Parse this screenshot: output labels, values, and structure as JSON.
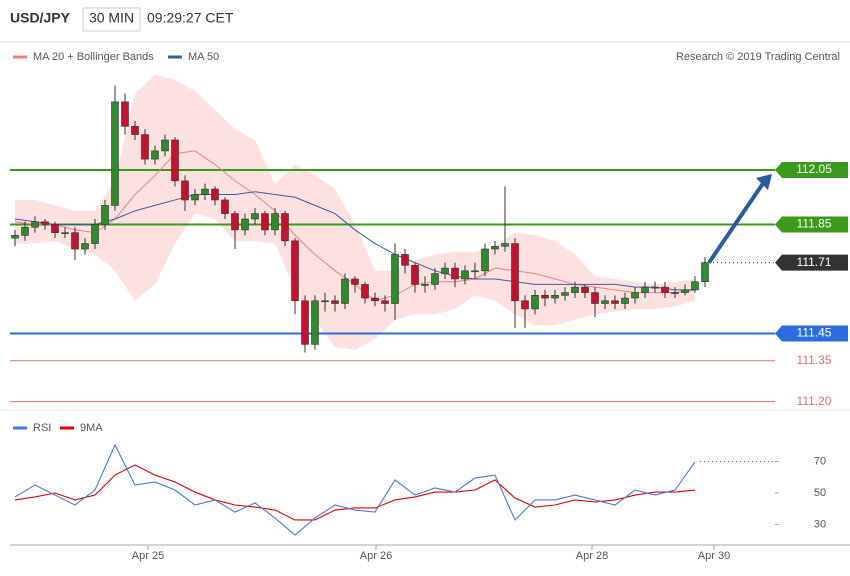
{
  "chart_data": [
    {
      "type": "candlestick",
      "title": "USD/JPY",
      "interval": "30 MIN",
      "time": "09:29:27 CET",
      "credit": "Research © 2019 Trading Central",
      "x": [
        0,
        1,
        2,
        3,
        4,
        5,
        6,
        7,
        8,
        9,
        10,
        11,
        12,
        13,
        14,
        15,
        16,
        17,
        18,
        19,
        20,
        21,
        22,
        23,
        24,
        25,
        26,
        27,
        28,
        29,
        30,
        31,
        32,
        33,
        34,
        35,
        36,
        37,
        38,
        39,
        40,
        41,
        42,
        43,
        44,
        45,
        46,
        47,
        48,
        49,
        50,
        51,
        52,
        53,
        54,
        55,
        56,
        57,
        58,
        59,
        60,
        61,
        62,
        63,
        64,
        65,
        66,
        67,
        68,
        69
      ],
      "open": [
        111.8,
        111.81,
        111.84,
        111.86,
        111.85,
        111.82,
        111.82,
        111.76,
        111.78,
        111.85,
        111.92,
        112.3,
        112.21,
        112.18,
        112.09,
        112.12,
        112.16,
        112.01,
        111.94,
        111.96,
        111.98,
        111.94,
        111.89,
        111.83,
        111.87,
        111.89,
        111.83,
        111.89,
        111.79,
        111.57,
        111.41,
        111.57,
        111.57,
        111.56,
        111.65,
        111.63,
        111.58,
        111.57,
        111.56,
        111.74,
        111.7,
        111.63,
        111.63,
        111.67,
        111.69,
        111.65,
        111.68,
        111.68,
        111.76,
        111.77,
        111.78,
        111.57,
        111.54,
        111.59,
        111.58,
        111.59,
        111.6,
        111.62,
        111.6,
        111.56,
        111.57,
        111.56,
        111.58,
        111.6,
        111.62,
        111.62,
        111.6,
        111.6,
        111.61,
        111.64
      ],
      "high": [
        111.83,
        111.86,
        111.88,
        111.87,
        111.86,
        111.84,
        111.84,
        111.8,
        111.87,
        111.94,
        112.36,
        112.33,
        112.23,
        112.2,
        112.14,
        112.18,
        112.17,
        112.03,
        111.98,
        112.0,
        111.99,
        111.95,
        111.9,
        111.89,
        111.91,
        111.9,
        111.91,
        111.9,
        111.8,
        111.59,
        111.59,
        111.6,
        111.59,
        111.67,
        111.66,
        111.64,
        111.6,
        111.59,
        111.78,
        111.76,
        111.71,
        111.66,
        111.69,
        111.71,
        111.71,
        111.7,
        111.71,
        111.78,
        111.79,
        111.99,
        111.8,
        111.59,
        111.61,
        111.61,
        111.61,
        111.62,
        111.64,
        111.63,
        111.62,
        111.59,
        111.59,
        111.6,
        111.62,
        111.64,
        111.64,
        111.64,
        111.62,
        111.63,
        111.66,
        111.73
      ],
      "low": [
        111.77,
        111.79,
        111.82,
        111.83,
        111.8,
        111.8,
        111.72,
        111.74,
        111.76,
        111.83,
        111.9,
        112.18,
        112.16,
        112.07,
        112.07,
        112.1,
        111.99,
        111.9,
        111.92,
        111.94,
        111.92,
        111.87,
        111.76,
        111.81,
        111.85,
        111.81,
        111.81,
        111.77,
        111.52,
        111.38,
        111.39,
        111.53,
        111.53,
        111.54,
        111.6,
        111.56,
        111.55,
        111.53,
        111.5,
        111.67,
        111.6,
        111.6,
        111.61,
        111.65,
        111.62,
        111.63,
        111.65,
        111.66,
        111.74,
        111.75,
        111.47,
        111.47,
        111.52,
        111.55,
        111.56,
        111.57,
        111.58,
        111.58,
        111.51,
        111.54,
        111.54,
        111.54,
        111.56,
        111.58,
        111.6,
        111.58,
        111.58,
        111.59,
        111.6,
        111.62
      ],
      "close": [
        111.81,
        111.84,
        111.86,
        111.85,
        111.82,
        111.82,
        111.76,
        111.78,
        111.85,
        111.92,
        112.3,
        112.21,
        112.18,
        112.09,
        112.12,
        112.16,
        112.01,
        111.94,
        111.96,
        111.98,
        111.94,
        111.89,
        111.83,
        111.87,
        111.89,
        111.83,
        111.89,
        111.79,
        111.57,
        111.41,
        111.57,
        111.57,
        111.56,
        111.65,
        111.63,
        111.58,
        111.57,
        111.56,
        111.74,
        111.7,
        111.63,
        111.63,
        111.67,
        111.69,
        111.65,
        111.68,
        111.68,
        111.76,
        111.77,
        111.78,
        111.57,
        111.54,
        111.59,
        111.58,
        111.59,
        111.6,
        111.62,
        111.6,
        111.56,
        111.57,
        111.56,
        111.58,
        111.6,
        111.62,
        111.62,
        111.6,
        111.6,
        111.61,
        111.64,
        111.71
      ],
      "up_color": "#2e8b2e",
      "down_color": "#c8102e",
      "xlim": [
        0,
        83
      ],
      "ylim": [
        111.16,
        112.4
      ],
      "indicators": {
        "x": [
          0,
          2,
          4,
          6,
          8,
          10,
          12,
          14,
          16,
          18,
          20,
          22,
          24,
          26,
          28,
          30,
          32,
          34,
          36,
          38,
          40,
          42,
          44,
          46,
          48,
          50,
          52,
          54,
          56,
          58,
          60,
          62,
          64,
          66,
          68
        ],
        "series": [
          {
            "name": "MA 20 + Bollinger Bands",
            "color": "#f08080",
            "band_color": "#fde0e0",
            "values": [
              111.86,
              111.85,
              111.85,
              111.83,
              111.82,
              111.87,
              111.96,
              112.03,
              112.11,
              112.12,
              112.07,
              112.01,
              111.96,
              111.9,
              111.81,
              111.74,
              111.68,
              111.63,
              111.57,
              111.59,
              111.63,
              111.64,
              111.64,
              111.65,
              111.69,
              111.68,
              111.67,
              111.65,
              111.63,
              111.62,
              111.61,
              111.6,
              111.6,
              111.6,
              111.61
            ],
            "upper": [
              111.94,
              111.94,
              111.92,
              111.9,
              111.9,
              112.01,
              112.33,
              112.4,
              112.38,
              112.34,
              112.27,
              112.2,
              112.16,
              112.0,
              112.07,
              112.03,
              111.98,
              111.85,
              111.68,
              111.68,
              111.72,
              111.74,
              111.75,
              111.75,
              111.77,
              111.82,
              111.81,
              111.79,
              111.74,
              111.66,
              111.65,
              111.64,
              111.63,
              111.64,
              111.65
            ],
            "lower": [
              111.78,
              111.78,
              111.79,
              111.76,
              111.74,
              111.68,
              111.57,
              111.63,
              111.78,
              111.89,
              111.87,
              111.79,
              111.79,
              111.78,
              111.61,
              111.5,
              111.4,
              111.39,
              111.43,
              111.5,
              111.52,
              111.52,
              111.54,
              111.59,
              111.57,
              111.52,
              111.48,
              111.48,
              111.5,
              111.52,
              111.53,
              111.54,
              111.54,
              111.55,
              111.57
            ]
          },
          {
            "name": "MA 50",
            "color": "#3a5f9e",
            "values": [
              111.87,
              111.86,
              111.85,
              111.85,
              111.85,
              111.87,
              111.9,
              111.92,
              111.94,
              111.96,
              111.96,
              111.96,
              111.97,
              111.96,
              111.95,
              111.92,
              111.89,
              111.83,
              111.78,
              111.74,
              111.71,
              111.68,
              111.66,
              111.65,
              111.65,
              111.64,
              111.63,
              111.63,
              111.63,
              111.63,
              111.63,
              111.62,
              111.62,
              111.61,
              111.61
            ]
          }
        ]
      },
      "levels": [
        {
          "value": 112.05,
          "color": "#3a9a1a",
          "box": true
        },
        {
          "value": 111.85,
          "color": "#3a9a1a",
          "box": true
        },
        {
          "value": 111.71,
          "color": "#333333",
          "box": true,
          "dotted": true
        },
        {
          "value": 111.45,
          "color": "#2a6de0",
          "box": true
        },
        {
          "value": 111.35,
          "color": "#e07070",
          "box": false
        },
        {
          "value": 111.2,
          "label": "111.20",
          "color": "#e07070",
          "box": false
        }
      ]
    },
    {
      "type": "line",
      "x": [
        0,
        2,
        4,
        6,
        8,
        10,
        12,
        14,
        16,
        18,
        20,
        22,
        24,
        26,
        28,
        30,
        32,
        34,
        36,
        38,
        40,
        42,
        44,
        46,
        48,
        50,
        52,
        54,
        56,
        58,
        60,
        62,
        64,
        66,
        68
      ],
      "series": [
        {
          "name": "RSI",
          "color": "#4a78d8",
          "values": [
            47.5,
            55.1,
            48.7,
            42.4,
            51.9,
            80.5,
            55.1,
            57.0,
            51.9,
            42.4,
            45.6,
            37.9,
            43.7,
            34.1,
            23.3,
            34.1,
            42.4,
            39.2,
            37.9,
            58.3,
            48.7,
            53.2,
            50.6,
            59.5,
            61.4,
            32.9,
            45.6,
            45.6,
            48.7,
            45.6,
            42.4,
            51.9,
            48.7,
            51.9,
            69.7
          ]
        },
        {
          "name": "9MA",
          "color": "#e00000",
          "values": [
            45.6,
            47.5,
            50.0,
            45.6,
            48.7,
            61.4,
            67.8,
            61.4,
            57.0,
            50.6,
            45.6,
            42.4,
            41.1,
            39.2,
            32.9,
            32.9,
            39.2,
            40.5,
            40.5,
            45.6,
            47.5,
            50.6,
            50.6,
            51.9,
            58.3,
            46.8,
            41.1,
            42.4,
            45.6,
            44.3,
            45.6,
            48.7,
            50.6,
            50.6,
            51.9
          ]
        }
      ],
      "xlim": [
        0,
        83
      ],
      "ylim": [
        17,
        102.7
      ],
      "yticks": [
        70,
        50,
        30
      ],
      "xticks": [
        {
          "value": 13.3,
          "label": "Apr 25"
        },
        {
          "value": 36.1,
          "label": "Apr 26"
        },
        {
          "value": 57.7,
          "label": "Apr 28"
        },
        {
          "value": 69.9,
          "label": "Apr 30"
        }
      ]
    }
  ]
}
